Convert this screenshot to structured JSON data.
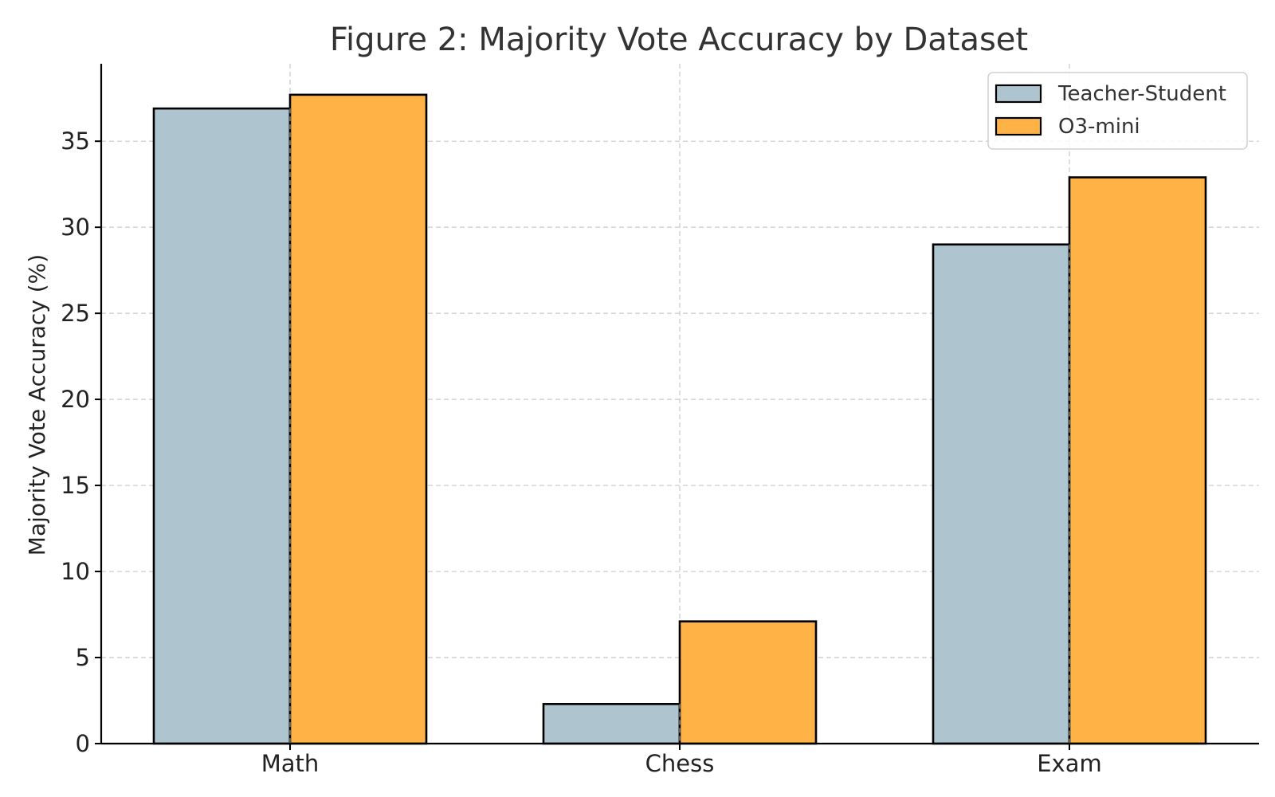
{
  "chart_data": {
    "type": "bar",
    "title": "Figure 2: Majority Vote Accuracy by Dataset",
    "xlabel": "",
    "ylabel": "Majority Vote Accuracy (%)",
    "categories": [
      "Math",
      "Chess",
      "Exam"
    ],
    "series": [
      {
        "name": "Teacher-Student",
        "values": [
          36.9,
          2.3,
          29.0
        ],
        "color": "#aec5cf"
      },
      {
        "name": "O3-mini",
        "values": [
          37.7,
          7.1,
          32.9
        ],
        "color": "#ffb347"
      }
    ],
    "ylim": [
      0,
      39.5
    ],
    "yticks": [
      0,
      5,
      10,
      15,
      20,
      25,
      30,
      35
    ],
    "grid": true,
    "legend_position": "top-right"
  }
}
